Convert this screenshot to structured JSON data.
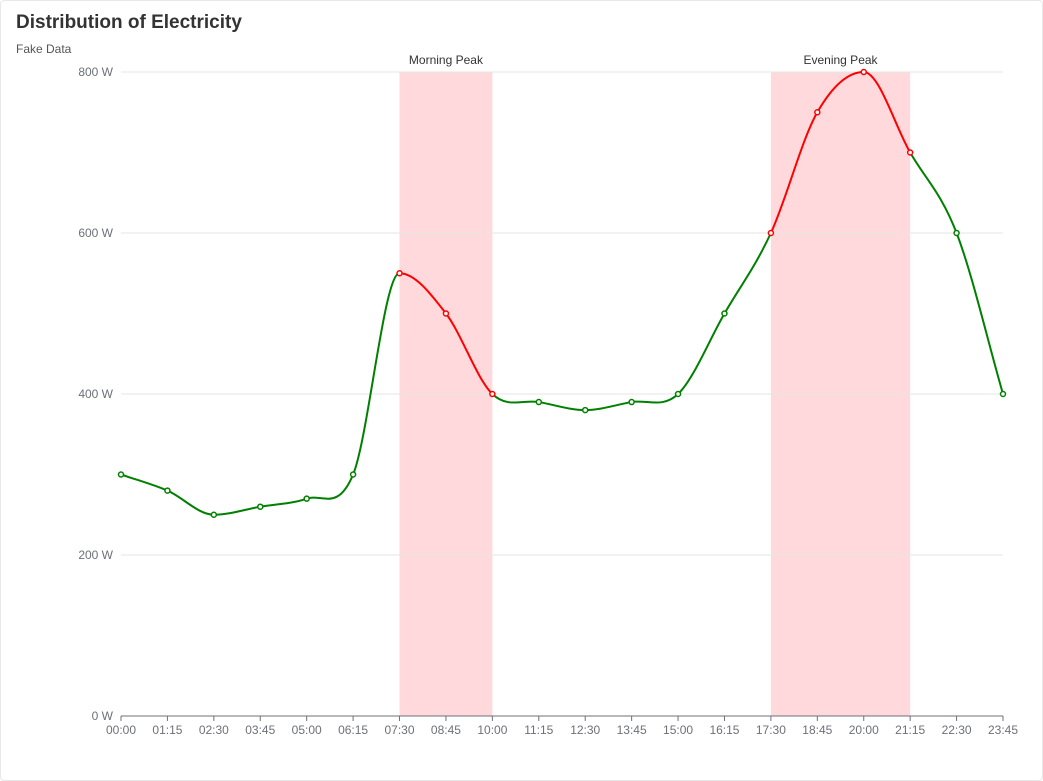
{
  "chart_data": {
    "type": "line",
    "title": "Distribution of Electricity",
    "subtitle": "Fake Data",
    "categories": [
      "00:00",
      "01:15",
      "02:30",
      "03:45",
      "05:00",
      "06:15",
      "07:30",
      "08:45",
      "10:00",
      "11:15",
      "12:30",
      "13:45",
      "15:00",
      "16:15",
      "17:30",
      "18:45",
      "20:00",
      "21:15",
      "22:30",
      "23:45"
    ],
    "series": [
      {
        "values": [
          300,
          280,
          250,
          260,
          270,
          300,
          550,
          500,
          400,
          390,
          380,
          390,
          400,
          500,
          600,
          750,
          800,
          700,
          600,
          400
        ]
      }
    ],
    "ylim": [
      0,
      800
    ],
    "y_ticks": [
      "0 W",
      "200 W",
      "400 W",
      "600 W",
      "800 W"
    ],
    "y_tick_values": [
      0,
      200,
      400,
      600,
      800
    ],
    "smooth": true,
    "grid": true,
    "mark_areas": [
      {
        "label": "Morning Peak",
        "from": "07:30",
        "to": "10:00"
      },
      {
        "label": "Evening Peak",
        "from": "17:30",
        "to": "21:15"
      }
    ],
    "colors": {
      "normal": "#008000",
      "peak": "#ff0000",
      "peak_area": "#ffd9db",
      "grid": "#e6e6e6",
      "axis": "#6e7079"
    }
  }
}
